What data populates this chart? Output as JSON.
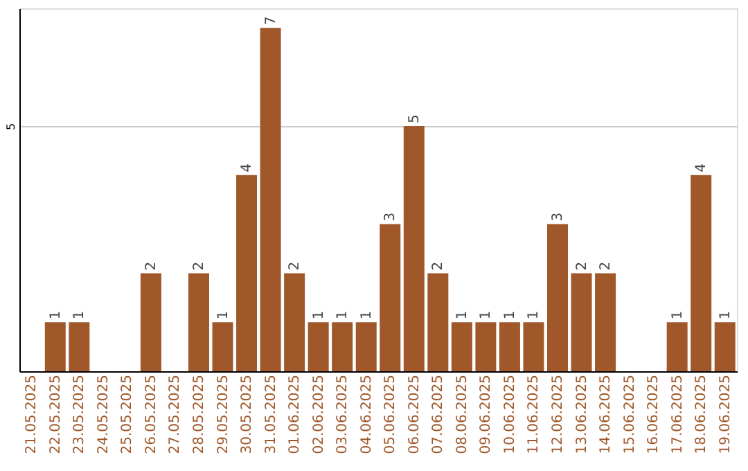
{
  "chart_data": {
    "type": "bar",
    "categories": [
      "21.05.2025",
      "22.05.2025",
      "23.05.2025",
      "24.05.2025",
      "25.05.2025",
      "26.05.2025",
      "27.05.2025",
      "28.05.2025",
      "29.05.2025",
      "30.05.2025",
      "31.05.2025",
      "01.06.2025",
      "02.06.2025",
      "03.06.2025",
      "04.06.2025",
      "05.06.2025",
      "06.06.2025",
      "07.06.2025",
      "08.06.2025",
      "09.06.2025",
      "10.06.2025",
      "11.06.2025",
      "12.06.2025",
      "13.06.2025",
      "14.06.2025",
      "15.06.2025",
      "16.06.2025",
      "17.06.2025",
      "18.06.2025",
      "19.06.2025"
    ],
    "values": [
      null,
      1,
      1,
      null,
      null,
      2,
      null,
      2,
      1,
      4,
      7,
      2,
      1,
      1,
      1,
      3,
      5,
      2,
      1,
      1,
      1,
      1,
      3,
      2,
      2,
      null,
      null,
      1,
      4,
      1
    ],
    "color": "#a0572a",
    "ylim": [
      0,
      7.4
    ],
    "yticks": [
      5
    ],
    "grid": "y",
    "data_labels": true
  }
}
